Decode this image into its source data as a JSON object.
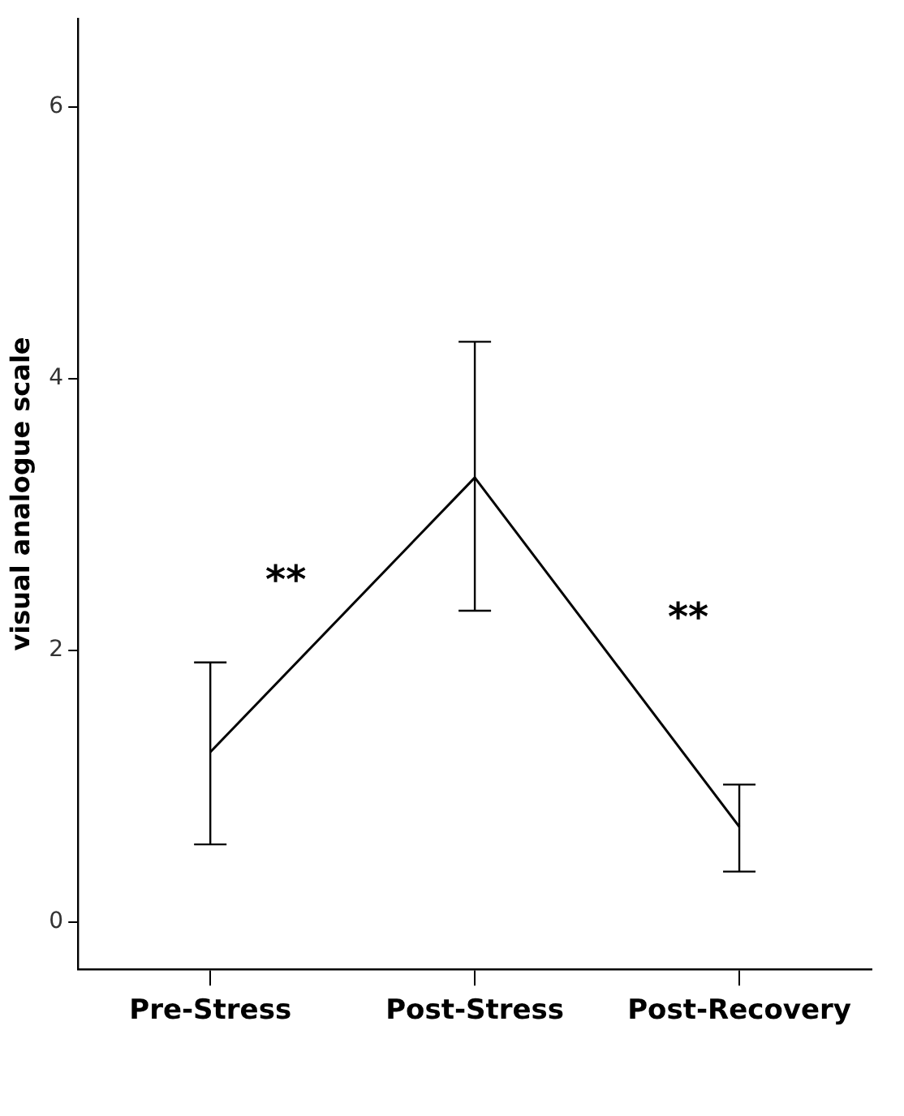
{
  "chart_data": {
    "type": "line",
    "ylabel": "visual analogue scale",
    "categories": [
      "Pre-Stress",
      "Post-Stress",
      "Post-Recovery"
    ],
    "series": [
      {
        "color": "#000000",
        "values": [
          1.25,
          3.27,
          0.7
        ],
        "errors": [
          [
            0.57,
            1.91
          ],
          [
            2.29,
            4.27
          ],
          [
            0.37,
            1.01
          ]
        ]
      }
    ],
    "ylim": [
      -0.35,
      6.65
    ],
    "yticks": [
      0,
      2,
      4,
      6
    ],
    "grid": false,
    "legend": false,
    "marker": "none",
    "line_style": "solid",
    "annotations": [
      "**",
      "**"
    ]
  }
}
